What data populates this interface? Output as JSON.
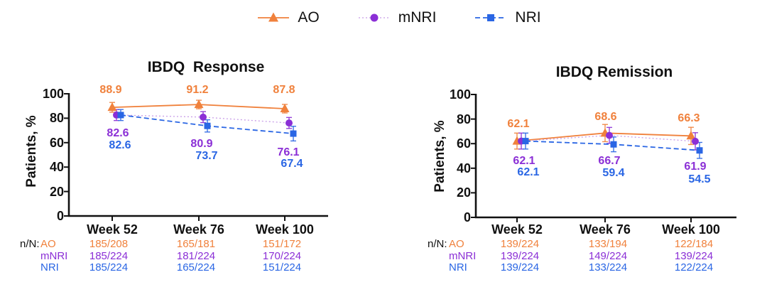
{
  "legend": {
    "items": [
      {
        "label": "AO",
        "color": "#F0813C",
        "line_color": "#F0813C",
        "marker": "triangle",
        "line": "solid"
      },
      {
        "label": "mNRI",
        "color": "#8B2FD6",
        "line_color": "#C89CE8",
        "marker": "circle",
        "line": "dotted"
      },
      {
        "label": "NRI",
        "color": "#2A66E4",
        "line_color": "#2A66E4",
        "marker": "square",
        "line": "dashed"
      }
    ]
  },
  "chart_data": [
    {
      "type": "line",
      "title": "IBDQ  Response",
      "ylabel": "Patients, %",
      "ylim": [
        0,
        100
      ],
      "yticks": [
        0,
        20,
        40,
        60,
        80,
        100
      ],
      "grid": false,
      "legend_position": "top-center",
      "categories": [
        "Week 52",
        "Week 76",
        "Week 100"
      ],
      "series": [
        {
          "name": "AO",
          "color": "#F0813C",
          "line_color": "#F0813C",
          "marker": "triangle",
          "line": "solid",
          "values": [
            88.9,
            91.2,
            87.8
          ],
          "err": [
            4.0,
            3.5,
            3.5
          ]
        },
        {
          "name": "mNRI",
          "color": "#8B2FD6",
          "line_color": "#C89CE8",
          "marker": "circle",
          "line": "dotted",
          "values": [
            82.6,
            80.9,
            76.1
          ],
          "err": [
            4.5,
            4.5,
            4.5
          ]
        },
        {
          "name": "NRI",
          "color": "#2A66E4",
          "line_color": "#2A66E4",
          "marker": "square",
          "line": "dashed",
          "values": [
            82.6,
            73.7,
            67.4
          ],
          "err": [
            4.5,
            5.0,
            6.0
          ]
        }
      ],
      "n_over_N": {
        "label": "n/N:",
        "rows": [
          {
            "name": "AO",
            "values": [
              "185/208",
              "165/181",
              "151/172"
            ]
          },
          {
            "name": "mNRI",
            "values": [
              "185/224",
              "181/224",
              "170/224"
            ]
          },
          {
            "name": "NRI",
            "values": [
              "185/224",
              "165/224",
              "151/224"
            ]
          }
        ]
      }
    },
    {
      "type": "line",
      "title": "IBDQ Remission",
      "ylabel": "Patients, %",
      "ylim": [
        0,
        100
      ],
      "yticks": [
        0,
        20,
        40,
        60,
        80,
        100
      ],
      "grid": false,
      "legend_position": "top-center",
      "categories": [
        "Week 52",
        "Week 76",
        "Week 100"
      ],
      "series": [
        {
          "name": "AO",
          "color": "#F0813C",
          "line_color": "#F0813C",
          "marker": "triangle",
          "line": "solid",
          "values": [
            62.1,
            68.6,
            66.3
          ],
          "err": [
            6.5,
            7.0,
            7.0
          ]
        },
        {
          "name": "mNRI",
          "color": "#8B2FD6",
          "line_color": "#C89CE8",
          "marker": "circle",
          "line": "dotted",
          "values": [
            62.1,
            66.7,
            61.9
          ],
          "err": [
            6.5,
            6.5,
            7.0
          ]
        },
        {
          "name": "NRI",
          "color": "#2A66E4",
          "line_color": "#2A66E4",
          "marker": "square",
          "line": "dashed",
          "values": [
            62.1,
            59.4,
            54.5
          ],
          "err": [
            6.5,
            6.0,
            6.5
          ]
        }
      ],
      "n_over_N": {
        "label": "n/N:",
        "rows": [
          {
            "name": "AO",
            "values": [
              "139/224",
              "133/194",
              "122/184"
            ]
          },
          {
            "name": "mNRI",
            "values": [
              "139/224",
              "149/224",
              "139/224"
            ]
          },
          {
            "name": "NRI",
            "values": [
              "139/224",
              "133/224",
              "122/224"
            ]
          }
        ]
      }
    }
  ]
}
